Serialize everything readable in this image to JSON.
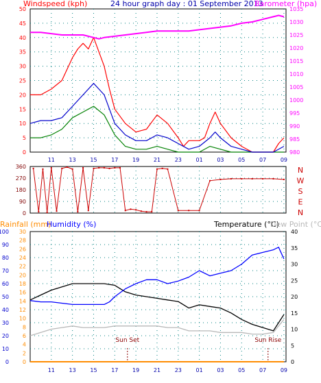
{
  "colors": {
    "windspeed": "#ff0000",
    "gust": "#ff0000",
    "avg": "#0000cc",
    "green": "#008000",
    "barometer": "#ff00ff",
    "direction": "#cc0000",
    "temperature": "#000000",
    "humidity": "#0000ff",
    "dewpoint": "#b8b8b8",
    "rainfall": "#ff8c00",
    "sun": "#8b0000",
    "title": "#0000aa",
    "grid": "#008080"
  },
  "chart_data": [
    {
      "type": "line",
      "title": "24 hour graph day : 01 September 2013",
      "left_axis_label": "Windspeed (kph)",
      "right_axis_label": "Barometer (hpa)",
      "x_ticks": [
        "11",
        "13",
        "15",
        "17",
        "19",
        "21",
        "23",
        "01",
        "03",
        "05",
        "07",
        "09"
      ],
      "x_range_hours": [
        9,
        33.2
      ],
      "y_left_ticks": [
        "0",
        "5",
        "10",
        "15",
        "20",
        "25",
        "30",
        "35",
        "40",
        "45",
        "50"
      ],
      "y_left_range": [
        0,
        50
      ],
      "y_right_ticks": [
        "980",
        "985",
        "990",
        "995",
        "1000",
        "1005",
        "1010",
        "1015",
        "1020",
        "1025",
        "1030",
        "1035"
      ],
      "y_right_range": [
        980,
        1035
      ],
      "grid": true,
      "series": [
        {
          "name": "Barometer (hpa)",
          "color_key": "barometer",
          "x": [
            9.0,
            10.0,
            11.0,
            12.0,
            13.0,
            14.0,
            15.0,
            15.5,
            16.0,
            17.0,
            18.0,
            19.0,
            20.0,
            21.0,
            22.0,
            23.0,
            24.0,
            25.0,
            26.0,
            27.0,
            28.0,
            29.0,
            30.0,
            31.0,
            32.0,
            32.5,
            33.0
          ],
          "y": [
            1026.0,
            1026.0,
            1025.5,
            1025.0,
            1025.0,
            1025.0,
            1024.0,
            1023.5,
            1024.0,
            1024.5,
            1025.0,
            1025.5,
            1026.0,
            1026.5,
            1026.5,
            1026.5,
            1026.5,
            1027.0,
            1027.5,
            1028.0,
            1028.5,
            1029.5,
            1030.0,
            1031.0,
            1032.0,
            1032.5,
            1032.0
          ]
        },
        {
          "name": "Wind gust",
          "color_key": "gust",
          "x": [
            9.0,
            10.0,
            11.0,
            12.0,
            13.0,
            13.5,
            14.0,
            14.5,
            15.0,
            15.5,
            16.0,
            16.5,
            17.0,
            18.0,
            19.0,
            20.0,
            21.0,
            22.0,
            23.0,
            23.5,
            24.0,
            25.0,
            25.5,
            26.0,
            26.5,
            27.0,
            28.0,
            29.0,
            30.0,
            31.0,
            32.0,
            32.5,
            33.0
          ],
          "y": [
            20,
            20,
            22,
            25,
            33,
            36,
            38,
            36,
            40,
            35,
            30,
            22,
            15,
            10,
            7,
            8,
            13,
            10,
            5,
            2,
            4,
            4,
            5,
            10,
            14,
            10,
            5,
            2,
            0,
            0,
            0,
            3,
            5
          ]
        },
        {
          "name": "Wind average",
          "color_key": "avg",
          "x": [
            9.0,
            10.0,
            11.0,
            12.0,
            13.0,
            14.0,
            15.0,
            15.5,
            16.0,
            16.5,
            17.0,
            18.0,
            19.0,
            20.0,
            21.0,
            22.0,
            23.0,
            24.0,
            25.0,
            26.0,
            26.5,
            27.0,
            28.0,
            29.0,
            30.0,
            31.0,
            32.0,
            33.0
          ],
          "y": [
            10,
            11,
            11,
            12,
            16,
            20,
            24,
            22,
            20,
            15,
            10,
            6,
            4,
            4,
            6,
            5,
            3,
            1,
            2,
            5,
            7,
            5,
            2,
            1,
            0,
            0,
            0,
            2
          ]
        },
        {
          "name": "Wind lull",
          "color_key": "green",
          "x": [
            9.0,
            10.0,
            11.0,
            12.0,
            13.0,
            14.0,
            15.0,
            16.0,
            17.0,
            18.0,
            19.0,
            20.0,
            21.0,
            22.0,
            23.0,
            24.0,
            25.0,
            26.0,
            27.0,
            28.0,
            29.0,
            30.0,
            31.0,
            32.0,
            33.0
          ],
          "y": [
            5,
            5,
            6,
            8,
            12,
            14,
            16,
            13,
            6,
            2,
            1,
            1,
            2,
            1,
            0,
            0,
            0,
            2,
            1,
            0,
            0,
            0,
            0,
            0,
            0
          ]
        }
      ]
    },
    {
      "type": "scatter",
      "title": "",
      "right_labels": [
        "N",
        "W",
        "S",
        "E",
        "N"
      ],
      "y_left_ticks": [
        "360",
        "270",
        "180",
        "90",
        "0"
      ],
      "y_range": [
        0,
        360
      ],
      "series": [
        {
          "name": "Wind direction",
          "color_key": "direction",
          "x": [
            9.3,
            9.8,
            10.2,
            10.6,
            11.0,
            11.5,
            12.0,
            12.5,
            13.0,
            13.5,
            14.0,
            14.5,
            15.0,
            15.5,
            16.0,
            16.5,
            17.0,
            17.5,
            18.0,
            18.5,
            19.0,
            19.5,
            20.0,
            20.5,
            21.0,
            21.5,
            22.0,
            23.0,
            24.0,
            25.0,
            26.0,
            27.0,
            28.0,
            29.0,
            30.0,
            31.0,
            32.0,
            33.0
          ],
          "y": [
            345,
            10,
            340,
            5,
            350,
            15,
            345,
            355,
            340,
            10,
            350,
            20,
            345,
            350,
            350,
            345,
            350,
            350,
            20,
            30,
            25,
            15,
            10,
            10,
            340,
            345,
            340,
            20,
            20,
            20,
            250,
            260,
            265,
            265,
            265,
            265,
            265,
            260
          ]
        }
      ]
    },
    {
      "type": "line",
      "title": "",
      "left_axis_labels": [
        "Rainfall (mm)",
        "Humidity (%)"
      ],
      "right_axis_labels": [
        "Temperature (°C)",
        "Dew Point (°C)"
      ],
      "x_ticks": [
        "11",
        "13",
        "15",
        "17",
        "19",
        "21",
        "23",
        "01",
        "03",
        "05",
        "07",
        "09"
      ],
      "humidity_ticks": [
        "100",
        "90",
        "80",
        "70",
        "60",
        "50",
        "40",
        "30",
        "20",
        "10",
        "0"
      ],
      "rainfall_ticks": [
        "30",
        "28",
        "26",
        "24",
        "22",
        "20",
        "18",
        "16",
        "14",
        "12",
        "10",
        "8",
        "6",
        "4",
        "2",
        "0"
      ],
      "temperature_ticks": [
        "40",
        "35",
        "30",
        "25",
        "20",
        "15",
        "10",
        "5",
        "0"
      ],
      "humidity_range": [
        0,
        100
      ],
      "rainfall_range": [
        0,
        30
      ],
      "temperature_range": [
        0,
        40
      ],
      "sun_set": {
        "label": "Sun Set",
        "hour": 18.2
      },
      "sun_rise": {
        "label": "Sun Rise",
        "hour": 31.5
      },
      "grid": true,
      "series": [
        {
          "name": "Temperature (°C)",
          "color_key": "temperature",
          "axis": "temperature",
          "x": [
            9.0,
            10.0,
            11.0,
            12.0,
            13.0,
            14.0,
            15.0,
            16.0,
            17.0,
            18.0,
            19.0,
            20.0,
            21.0,
            22.0,
            23.0,
            24.0,
            25.0,
            26.0,
            27.0,
            28.0,
            29.0,
            30.0,
            31.0,
            32.0,
            33.0
          ],
          "y": [
            19.0,
            20.5,
            22.0,
            23.0,
            24.0,
            24.0,
            24.0,
            24.0,
            23.5,
            21.5,
            20.5,
            20.0,
            19.5,
            19.0,
            18.5,
            16.5,
            17.5,
            17.0,
            16.5,
            15.0,
            13.0,
            11.5,
            10.5,
            9.5,
            14.5
          ]
        },
        {
          "name": "Humidity (%)",
          "color_key": "humidity",
          "axis": "humidity",
          "x": [
            9.0,
            10.0,
            11.0,
            12.0,
            13.0,
            14.0,
            15.0,
            16.0,
            16.5,
            17.0,
            18.0,
            19.0,
            20.0,
            21.0,
            22.0,
            23.0,
            24.0,
            25.0,
            26.0,
            27.0,
            28.0,
            29.0,
            30.0,
            31.0,
            32.0,
            32.5,
            33.0
          ],
          "y": [
            47,
            46,
            46,
            45,
            44,
            44,
            44,
            44,
            46,
            50,
            56,
            60,
            63,
            63,
            60,
            62,
            65,
            70,
            66,
            68,
            70,
            75,
            82,
            84,
            86,
            88,
            79
          ]
        },
        {
          "name": "Dew Point (°C)",
          "color_key": "dewpoint",
          "axis": "temperature",
          "x": [
            9.0,
            10.0,
            11.0,
            12.0,
            13.0,
            14.0,
            15.0,
            16.0,
            17.0,
            18.0,
            19.0,
            20.0,
            21.0,
            22.0,
            23.0,
            24.0,
            25.0,
            26.0,
            27.0,
            28.0,
            29.0,
            30.0,
            31.0,
            32.0,
            33.0
          ],
          "y": [
            8.0,
            9.0,
            10.0,
            10.5,
            11.0,
            10.5,
            10.5,
            10.5,
            11.0,
            11.0,
            11.0,
            11.0,
            11.0,
            10.5,
            10.5,
            9.5,
            9.5,
            9.5,
            9.0,
            9.0,
            9.0,
            8.5,
            8.5,
            9.0,
            13.0
          ]
        },
        {
          "name": "Rainfall (mm)",
          "color_key": "rainfall",
          "axis": "rainfall",
          "x": [
            9.0,
            33.0
          ],
          "y": [
            0,
            0
          ]
        }
      ]
    }
  ]
}
